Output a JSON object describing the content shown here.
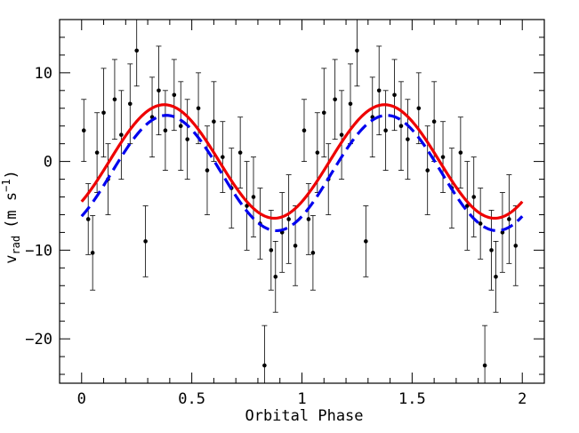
{
  "chart_data": {
    "type": "scatter",
    "title": "",
    "xlabel": "Orbital Phase",
    "ylabel": {
      "main": "v",
      "sub": "rad",
      "unit_open": "(m s",
      "unit_sup": "−1",
      "unit_close": ")"
    },
    "xlim": [
      -0.1,
      2.1
    ],
    "ylim": [
      -25,
      16
    ],
    "x_ticks": [
      0,
      0.5,
      1,
      1.5,
      2
    ],
    "x_tick_labels": [
      "0",
      "0.5",
      "1",
      "1.5",
      "2"
    ],
    "y_ticks": [
      -20,
      -10,
      0,
      10
    ],
    "y_tick_labels": [
      "−20",
      "−10",
      "0",
      "10"
    ],
    "grid": false,
    "legend": "none",
    "series": [
      {
        "kind": "points_with_errorbars",
        "color": "#000000",
        "sample_points": [
          {
            "x": 0.01,
            "y": 3.5,
            "err": 3.5
          },
          {
            "x": 0.03,
            "y": -6.5,
            "err": 4.0
          },
          {
            "x": 0.05,
            "y": -10.3,
            "err": 4.2
          },
          {
            "x": 0.07,
            "y": 1.0,
            "err": 4.5
          },
          {
            "x": 0.1,
            "y": 5.5,
            "err": 5.0
          },
          {
            "x": 0.12,
            "y": -2.0,
            "err": 4.0
          },
          {
            "x": 0.15,
            "y": 7.0,
            "err": 4.5
          },
          {
            "x": 0.18,
            "y": 3.0,
            "err": 5.0
          },
          {
            "x": 0.22,
            "y": 6.5,
            "err": 4.5
          },
          {
            "x": 0.25,
            "y": 12.5,
            "err": 4.0
          },
          {
            "x": 0.29,
            "y": -9.0,
            "err": 4.0
          },
          {
            "x": 0.32,
            "y": 5.0,
            "err": 4.5
          },
          {
            "x": 0.35,
            "y": 8.0,
            "err": 5.0
          },
          {
            "x": 0.38,
            "y": 3.5,
            "err": 4.5
          },
          {
            "x": 0.42,
            "y": 7.5,
            "err": 4.0
          },
          {
            "x": 0.45,
            "y": 4.0,
            "err": 5.0
          },
          {
            "x": 0.48,
            "y": 2.5,
            "err": 4.5
          },
          {
            "x": 0.53,
            "y": 6.0,
            "err": 4.0
          },
          {
            "x": 0.57,
            "y": -1.0,
            "err": 5.0
          },
          {
            "x": 0.6,
            "y": 4.5,
            "err": 4.5
          },
          {
            "x": 0.64,
            "y": 0.5,
            "err": 4.0
          },
          {
            "x": 0.68,
            "y": -3.0,
            "err": 4.5
          },
          {
            "x": 0.72,
            "y": 1.0,
            "err": 4.0
          },
          {
            "x": 0.75,
            "y": -5.0,
            "err": 5.0
          },
          {
            "x": 0.78,
            "y": -4.0,
            "err": 4.5
          },
          {
            "x": 0.81,
            "y": -7.0,
            "err": 4.0
          },
          {
            "x": 0.83,
            "y": -23.0,
            "err": 4.5
          },
          {
            "x": 0.86,
            "y": -10.0,
            "err": 4.5
          },
          {
            "x": 0.88,
            "y": -13.0,
            "err": 4.0
          },
          {
            "x": 0.91,
            "y": -8.0,
            "err": 4.5
          },
          {
            "x": 0.94,
            "y": -6.5,
            "err": 5.0
          },
          {
            "x": 0.97,
            "y": -9.5,
            "err": 4.5
          },
          {
            "x": 1.01,
            "y": 3.5,
            "err": 3.5
          },
          {
            "x": 1.03,
            "y": -6.5,
            "err": 4.0
          },
          {
            "x": 1.05,
            "y": -10.3,
            "err": 4.2
          },
          {
            "x": 1.07,
            "y": 1.0,
            "err": 4.5
          },
          {
            "x": 1.1,
            "y": 5.5,
            "err": 5.0
          },
          {
            "x": 1.12,
            "y": -2.0,
            "err": 4.0
          },
          {
            "x": 1.15,
            "y": 7.0,
            "err": 4.5
          },
          {
            "x": 1.18,
            "y": 3.0,
            "err": 5.0
          },
          {
            "x": 1.22,
            "y": 6.5,
            "err": 4.5
          },
          {
            "x": 1.25,
            "y": 12.5,
            "err": 4.0
          },
          {
            "x": 1.29,
            "y": -9.0,
            "err": 4.0
          },
          {
            "x": 1.32,
            "y": 5.0,
            "err": 4.5
          },
          {
            "x": 1.35,
            "y": 8.0,
            "err": 5.0
          },
          {
            "x": 1.38,
            "y": 3.5,
            "err": 4.5
          },
          {
            "x": 1.42,
            "y": 7.5,
            "err": 4.0
          },
          {
            "x": 1.45,
            "y": 4.0,
            "err": 5.0
          },
          {
            "x": 1.48,
            "y": 2.5,
            "err": 4.5
          },
          {
            "x": 1.53,
            "y": 6.0,
            "err": 4.0
          },
          {
            "x": 1.57,
            "y": -1.0,
            "err": 5.0
          },
          {
            "x": 1.6,
            "y": 4.5,
            "err": 4.5
          },
          {
            "x": 1.64,
            "y": 0.5,
            "err": 4.0
          },
          {
            "x": 1.68,
            "y": -3.0,
            "err": 4.5
          },
          {
            "x": 1.72,
            "y": 1.0,
            "err": 4.0
          },
          {
            "x": 1.75,
            "y": -5.0,
            "err": 5.0
          },
          {
            "x": 1.78,
            "y": -4.0,
            "err": 4.5
          },
          {
            "x": 1.81,
            "y": -7.0,
            "err": 4.0
          },
          {
            "x": 1.83,
            "y": -23.0,
            "err": 4.5
          },
          {
            "x": 1.86,
            "y": -10.0,
            "err": 4.5
          },
          {
            "x": 1.88,
            "y": -13.0,
            "err": 4.0
          },
          {
            "x": 1.91,
            "y": -8.0,
            "err": 4.5
          },
          {
            "x": 1.94,
            "y": -6.5,
            "err": 5.0
          },
          {
            "x": 1.97,
            "y": -9.5,
            "err": 4.5
          }
        ]
      },
      {
        "kind": "model_curve",
        "color": "#ee0000",
        "dash": "solid",
        "amplitude": 6.4,
        "offset": 0.0,
        "peak_phase": 0.375
      },
      {
        "kind": "model_curve",
        "color": "#0000ee",
        "dash": "dashed",
        "amplitude": 6.5,
        "offset": -1.3,
        "peak_phase": 0.385
      }
    ]
  }
}
